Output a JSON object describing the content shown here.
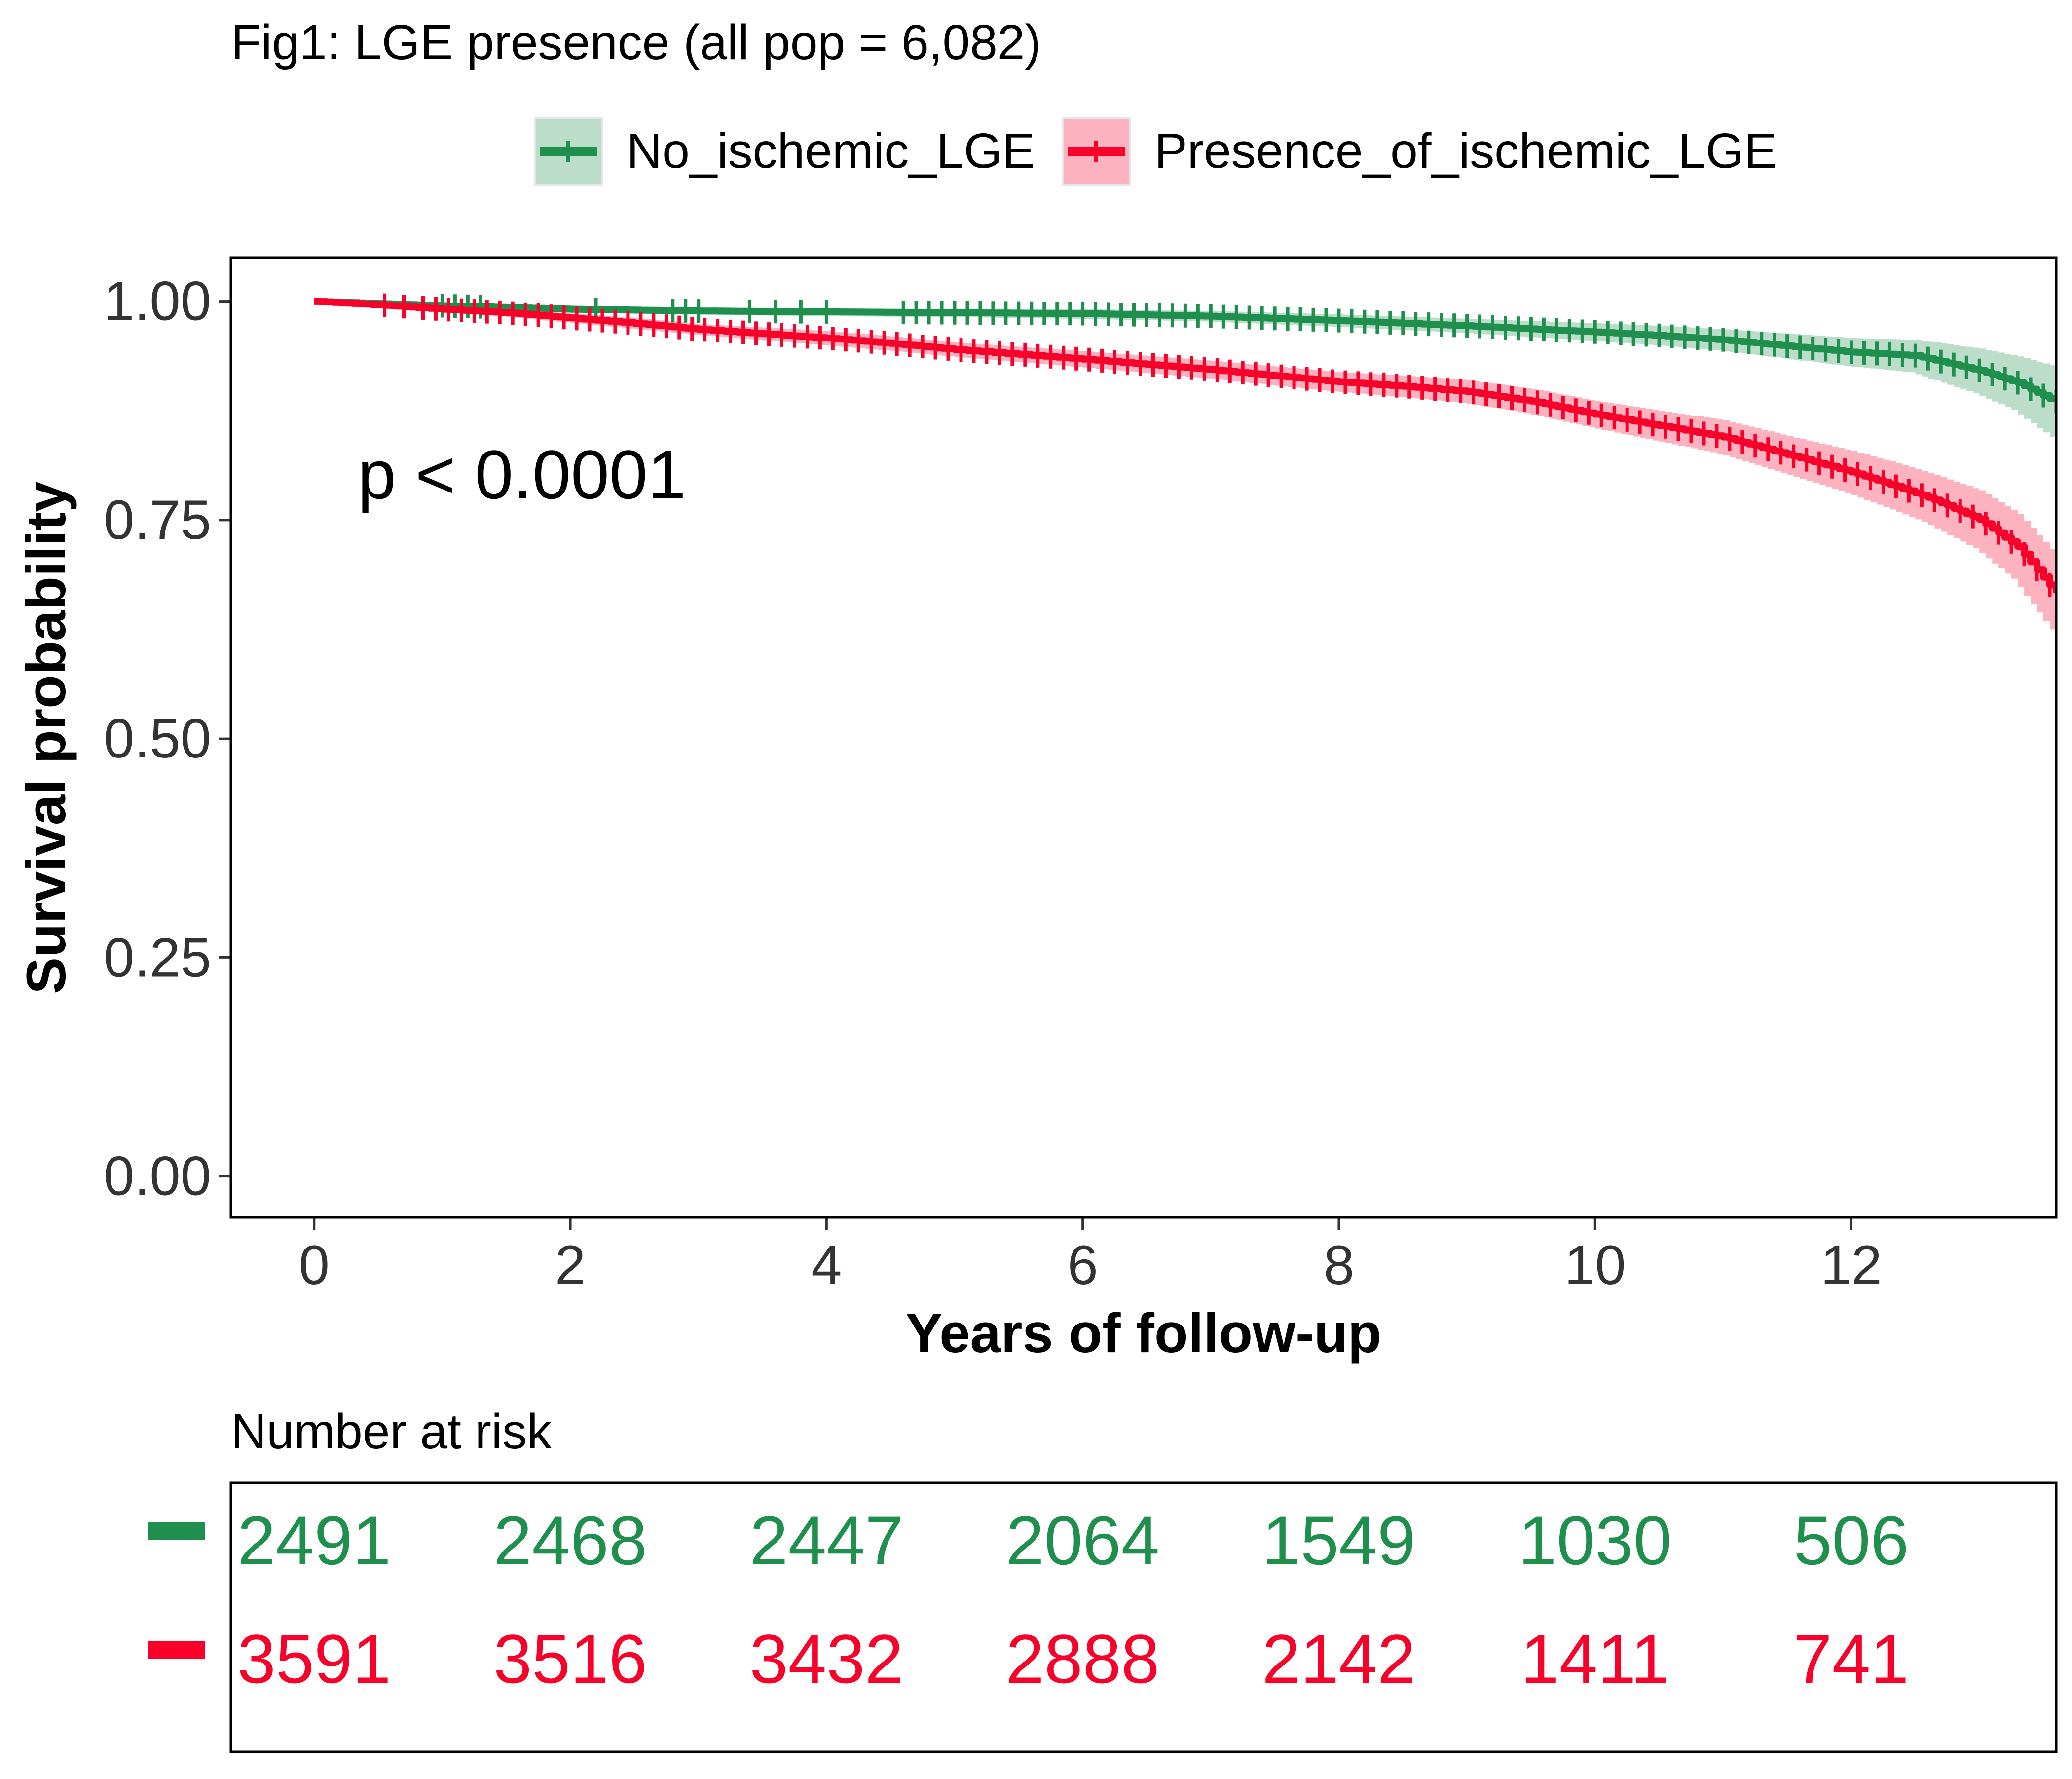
{
  "chart_data": {
    "type": "line",
    "title": "Fig1: LGE presence (all pop = 6,082)",
    "xlabel": "Years of follow-up",
    "ylabel": "Survival probability",
    "xlim": [
      -0.65,
      13.6
    ],
    "ylim": [
      -0.047,
      1.05
    ],
    "x_ticks": [
      0,
      2,
      4,
      6,
      8,
      10,
      12
    ],
    "x_tick_labels": [
      "0",
      "2",
      "4",
      "6",
      "8",
      "10",
      "12"
    ],
    "y_ticks": [
      0,
      0.25,
      0.5,
      0.75,
      1.0
    ],
    "y_tick_labels": [
      "0.00",
      "0.25",
      "0.50",
      "0.75",
      "1.00"
    ],
    "grid": false,
    "legend_position": "top",
    "annotation": "p < 0.0001",
    "colors": {
      "no_ischemic": "#1f8f4e",
      "ischemic": "#f8002a"
    },
    "series": [
      {
        "name": "No_ischemic_LGE",
        "x": [
          0,
          1,
          2,
          3,
          4,
          5,
          6,
          7,
          8,
          9,
          10,
          10.5,
          11,
          11.5,
          12,
          12.5,
          13,
          13.3,
          13.6
        ],
        "y": [
          1.0,
          0.995,
          0.991,
          0.989,
          0.988,
          0.987,
          0.986,
          0.983,
          0.978,
          0.972,
          0.965,
          0.961,
          0.956,
          0.949,
          0.942,
          0.938,
          0.921,
          0.907,
          0.885
        ],
        "ci_lower": [
          1.0,
          0.992,
          0.987,
          0.985,
          0.983,
          0.982,
          0.98,
          0.977,
          0.971,
          0.964,
          0.955,
          0.95,
          0.944,
          0.935,
          0.926,
          0.919,
          0.895,
          0.876,
          0.845
        ],
        "ci_upper": [
          1.0,
          0.998,
          0.995,
          0.993,
          0.992,
          0.991,
          0.991,
          0.989,
          0.985,
          0.98,
          0.975,
          0.972,
          0.968,
          0.963,
          0.958,
          0.956,
          0.946,
          0.937,
          0.925
        ],
        "censor_x_ranges": [
          [
            1.0,
            1.3,
            0.1
          ],
          [
            2.2,
            2.2,
            0.1
          ],
          [
            2.8,
            3.0,
            0.1
          ],
          [
            3.4,
            4.0,
            0.2
          ],
          [
            4.6,
            13.6,
            0.1
          ]
        ]
      },
      {
        "name": "Presence_of_ischemic_LGE",
        "x": [
          0,
          0.5,
          1,
          1.5,
          2,
          2.5,
          3,
          3.5,
          4,
          4.5,
          5,
          6,
          7,
          8,
          8.5,
          9,
          9.5,
          10,
          10.5,
          11,
          11.5,
          12,
          12.3,
          12.6,
          13,
          13.3,
          13.6
        ],
        "y": [
          1.0,
          0.996,
          0.991,
          0.987,
          0.981,
          0.975,
          0.968,
          0.963,
          0.958,
          0.952,
          0.945,
          0.934,
          0.922,
          0.908,
          0.903,
          0.897,
          0.886,
          0.871,
          0.858,
          0.845,
          0.825,
          0.805,
          0.791,
          0.776,
          0.751,
          0.72,
          0.667
        ],
        "ci_lower": [
          1.0,
          0.994,
          0.988,
          0.983,
          0.976,
          0.969,
          0.962,
          0.956,
          0.95,
          0.944,
          0.937,
          0.925,
          0.912,
          0.897,
          0.891,
          0.884,
          0.872,
          0.856,
          0.841,
          0.826,
          0.804,
          0.781,
          0.765,
          0.748,
          0.718,
          0.683,
          0.625
        ],
        "ci_upper": [
          1.0,
          0.998,
          0.994,
          0.991,
          0.986,
          0.981,
          0.974,
          0.97,
          0.966,
          0.96,
          0.953,
          0.943,
          0.932,
          0.919,
          0.915,
          0.91,
          0.9,
          0.886,
          0.875,
          0.864,
          0.846,
          0.829,
          0.817,
          0.804,
          0.784,
          0.757,
          0.709
        ],
        "censor_x_ranges": [
          [
            0.55,
            0.85,
            0.15
          ],
          [
            0.95,
            1.75,
            0.1
          ],
          [
            1.85,
            13.6,
            0.1
          ]
        ]
      }
    ]
  },
  "risk_table": {
    "title": "Number at risk",
    "times": [
      0,
      2,
      4,
      6,
      8,
      10,
      12
    ],
    "rows": [
      {
        "name": "No_ischemic_LGE",
        "color": "#1f8f4e",
        "values": [
          "2491",
          "2468",
          "2447",
          "2064",
          "1549",
          "1030",
          "506"
        ]
      },
      {
        "name": "Presence_of_ischemic_LGE",
        "color": "#f8002a",
        "values": [
          "3591",
          "3516",
          "3432",
          "2888",
          "2142",
          "1411",
          "741"
        ]
      }
    ]
  }
}
